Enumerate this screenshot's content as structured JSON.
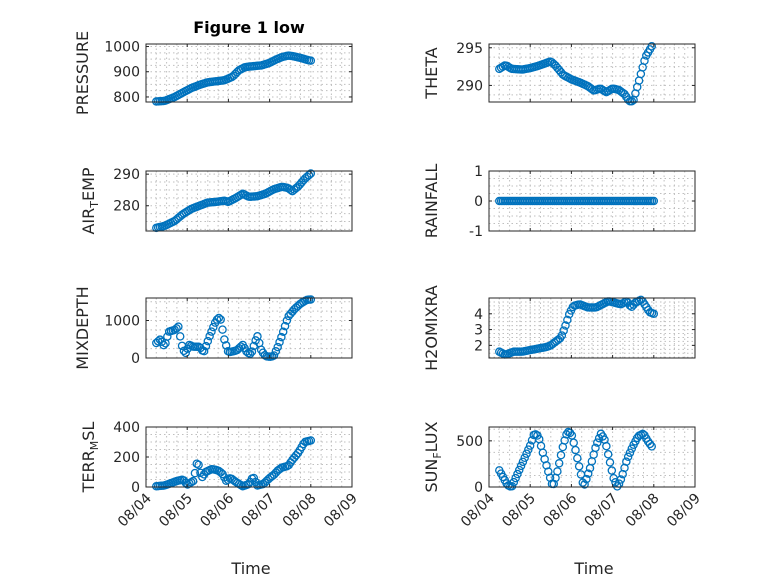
{
  "figure": {
    "title": "Figure 1 low",
    "xlabel": "Time",
    "colors": {
      "marker": "#0072BD",
      "axes": "#262626",
      "grid": "#bfbfbf",
      "background": "#ffffff"
    }
  },
  "chart_data": [
    {
      "id": "pressure",
      "type": "scatter",
      "title": "Figure 1 low",
      "ylabel": "PRESSURE",
      "xlim": [
        0,
        5
      ],
      "ylim": [
        780,
        1010
      ],
      "yticks": [
        800,
        900,
        1000
      ],
      "xticks": [
        0,
        1,
        2,
        3,
        4,
        5
      ],
      "xticklabels": [
        "08/04",
        "08/05",
        "08/06",
        "08/07",
        "08/08",
        "08/09"
      ],
      "show_xticklabels": false,
      "grid": true,
      "xlabel": "",
      "curve": [
        [
          0.25,
          782
        ],
        [
          0.45,
          784
        ],
        [
          0.7,
          800
        ],
        [
          0.9,
          818
        ],
        [
          1.1,
          835
        ],
        [
          1.3,
          848
        ],
        [
          1.5,
          858
        ],
        [
          1.7,
          862
        ],
        [
          1.9,
          866
        ],
        [
          2.1,
          880
        ],
        [
          2.25,
          905
        ],
        [
          2.4,
          918
        ],
        [
          2.6,
          922
        ],
        [
          2.8,
          925
        ],
        [
          3.0,
          935
        ],
        [
          3.15,
          948
        ],
        [
          3.3,
          958
        ],
        [
          3.45,
          964
        ],
        [
          3.55,
          962
        ],
        [
          3.75,
          955
        ],
        [
          3.85,
          950
        ],
        [
          3.95,
          945
        ],
        [
          4.0,
          944
        ]
      ],
      "n_points": 85
    },
    {
      "id": "theta",
      "type": "scatter",
      "ylabel": "THETA",
      "xlim": [
        0,
        5
      ],
      "ylim": [
        287.8,
        295.5
      ],
      "yticks": [
        290,
        295
      ],
      "xticks": [
        0,
        1,
        2,
        3,
        4,
        5
      ],
      "xticklabels": [
        "08/04",
        "08/05",
        "08/06",
        "08/07",
        "08/08",
        "08/09"
      ],
      "show_xticklabels": false,
      "grid": true,
      "xlabel": "",
      "curve": [
        [
          0.25,
          292.2
        ],
        [
          0.4,
          292.7
        ],
        [
          0.55,
          292.2
        ],
        [
          0.8,
          292.1
        ],
        [
          1.0,
          292.3
        ],
        [
          1.2,
          292.6
        ],
        [
          1.35,
          292.9
        ],
        [
          1.5,
          293.2
        ],
        [
          1.62,
          292.6
        ],
        [
          1.8,
          291.4
        ],
        [
          2.0,
          290.8
        ],
        [
          2.2,
          290.4
        ],
        [
          2.4,
          289.9
        ],
        [
          2.55,
          289.3
        ],
        [
          2.7,
          289.6
        ],
        [
          2.85,
          289.1
        ],
        [
          3.0,
          289.6
        ],
        [
          3.15,
          289.4
        ],
        [
          3.3,
          288.8
        ],
        [
          3.4,
          287.9
        ],
        [
          3.5,
          287.9
        ],
        [
          3.65,
          290.8
        ],
        [
          3.8,
          293.8
        ],
        [
          3.95,
          295.2
        ]
      ],
      "n_points": 85
    },
    {
      "id": "air_temp",
      "type": "scatter",
      "ylabel": "AIR_TEMP",
      "xlim": [
        0,
        5
      ],
      "ylim": [
        272,
        291
      ],
      "yticks": [
        280,
        290
      ],
      "xticks": [
        0,
        1,
        2,
        3,
        4,
        5
      ],
      "xticklabels": [
        "08/04",
        "08/05",
        "08/06",
        "08/07",
        "08/08",
        "08/09"
      ],
      "show_xticklabels": false,
      "grid": true,
      "xlabel": "",
      "curve": [
        [
          0.25,
          273
        ],
        [
          0.45,
          273.6
        ],
        [
          0.7,
          275.2
        ],
        [
          0.9,
          277.4
        ],
        [
          1.1,
          279
        ],
        [
          1.3,
          280
        ],
        [
          1.5,
          281
        ],
        [
          1.7,
          281.2
        ],
        [
          1.9,
          281.6
        ],
        [
          2.0,
          281.2
        ],
        [
          2.2,
          282.6
        ],
        [
          2.35,
          283.8
        ],
        [
          2.5,
          282.8
        ],
        [
          2.7,
          283
        ],
        [
          2.9,
          283.8
        ],
        [
          3.1,
          285.2
        ],
        [
          3.3,
          286
        ],
        [
          3.45,
          285.6
        ],
        [
          3.55,
          284.6
        ],
        [
          3.7,
          286.2
        ],
        [
          3.85,
          288.5
        ],
        [
          4.0,
          290.2
        ]
      ],
      "n_points": 85
    },
    {
      "id": "rainfall",
      "type": "scatter",
      "ylabel": "RAINFALL",
      "xlim": [
        0,
        5
      ],
      "ylim": [
        -1,
        1
      ],
      "yticks": [
        -1,
        0,
        1
      ],
      "xticks": [
        0,
        1,
        2,
        3,
        4,
        5
      ],
      "xticklabels": [
        "08/04",
        "08/05",
        "08/06",
        "08/07",
        "08/08",
        "08/09"
      ],
      "show_xticklabels": false,
      "grid": true,
      "xlabel": "",
      "curve": [
        [
          0.25,
          0
        ],
        [
          4.0,
          0
        ]
      ],
      "n_points": 85
    },
    {
      "id": "mixdepth",
      "type": "scatter",
      "ylabel": "MIXDEPTH",
      "xlim": [
        0,
        5
      ],
      "ylim": [
        0,
        1600
      ],
      "yticks": [
        0,
        1000
      ],
      "xticks": [
        0,
        1,
        2,
        3,
        4,
        5
      ],
      "xticklabels": [
        "08/04",
        "08/05",
        "08/06",
        "08/07",
        "08/08",
        "08/09"
      ],
      "show_xticklabels": false,
      "grid": true,
      "xlabel": "",
      "curve": [
        [
          0.25,
          400
        ],
        [
          0.35,
          500
        ],
        [
          0.45,
          300
        ],
        [
          0.55,
          700
        ],
        [
          0.7,
          750
        ],
        [
          0.8,
          850
        ],
        [
          0.85,
          400
        ],
        [
          0.95,
          100
        ],
        [
          1.05,
          350
        ],
        [
          1.15,
          300
        ],
        [
          1.3,
          300
        ],
        [
          1.4,
          150
        ],
        [
          1.55,
          600
        ],
        [
          1.7,
          1000
        ],
        [
          1.8,
          1100
        ],
        [
          1.9,
          500
        ],
        [
          2.0,
          150
        ],
        [
          2.2,
          200
        ],
        [
          2.35,
          350
        ],
        [
          2.45,
          150
        ],
        [
          2.55,
          100
        ],
        [
          2.7,
          600
        ],
        [
          2.8,
          200
        ],
        [
          2.9,
          50
        ],
        [
          3.0,
          30
        ],
        [
          3.1,
          50
        ],
        [
          3.2,
          300
        ],
        [
          3.3,
          600
        ],
        [
          3.45,
          1100
        ],
        [
          3.6,
          1300
        ],
        [
          3.75,
          1450
        ],
        [
          3.9,
          1550
        ],
        [
          4.0,
          1560
        ]
      ],
      "n_points": 85
    },
    {
      "id": "h2omixra",
      "type": "scatter",
      "ylabel": "H2OMIXRA",
      "xlim": [
        0,
        5
      ],
      "ylim": [
        1.2,
        5.0
      ],
      "yticks": [
        2,
        3,
        4
      ],
      "xticks": [
        0,
        1,
        2,
        3,
        4,
        5
      ],
      "xticklabels": [
        "08/04",
        "08/05",
        "08/06",
        "08/07",
        "08/08",
        "08/09"
      ],
      "show_xticklabels": false,
      "grid": true,
      "xlabel": "",
      "curve": [
        [
          0.25,
          1.6
        ],
        [
          0.4,
          1.4
        ],
        [
          0.6,
          1.6
        ],
        [
          0.8,
          1.6
        ],
        [
          1.0,
          1.7
        ],
        [
          1.2,
          1.8
        ],
        [
          1.4,
          1.9
        ],
        [
          1.5,
          2.0
        ],
        [
          1.6,
          2.2
        ],
        [
          1.75,
          2.5
        ],
        [
          1.85,
          3.2
        ],
        [
          1.95,
          4.0
        ],
        [
          2.05,
          4.5
        ],
        [
          2.2,
          4.6
        ],
        [
          2.4,
          4.4
        ],
        [
          2.6,
          4.4
        ],
        [
          2.75,
          4.6
        ],
        [
          2.9,
          4.8
        ],
        [
          3.05,
          4.7
        ],
        [
          3.2,
          4.6
        ],
        [
          3.35,
          4.8
        ],
        [
          3.45,
          4.4
        ],
        [
          3.55,
          4.7
        ],
        [
          3.7,
          4.9
        ],
        [
          3.8,
          4.5
        ],
        [
          3.9,
          4.1
        ],
        [
          4.0,
          4.0
        ]
      ],
      "n_points": 85
    },
    {
      "id": "terr_msl",
      "type": "scatter",
      "ylabel": "TERR_MSL",
      "xlim": [
        0,
        5
      ],
      "ylim": [
        0,
        400
      ],
      "yticks": [
        0,
        200,
        400
      ],
      "xticks": [
        0,
        1,
        2,
        3,
        4,
        5
      ],
      "xticklabels": [
        "08/04",
        "08/05",
        "08/06",
        "08/07",
        "08/08",
        "08/09"
      ],
      "show_xticklabels": true,
      "grid": true,
      "xlabel": "Time",
      "curve": [
        [
          0.25,
          5
        ],
        [
          0.45,
          10
        ],
        [
          0.6,
          25
        ],
        [
          0.75,
          40
        ],
        [
          0.9,
          50
        ],
        [
          1.0,
          15
        ],
        [
          1.15,
          40
        ],
        [
          1.25,
          180
        ],
        [
          1.35,
          60
        ],
        [
          1.45,
          100
        ],
        [
          1.6,
          120
        ],
        [
          1.75,
          110
        ],
        [
          1.85,
          90
        ],
        [
          1.95,
          40
        ],
        [
          2.05,
          60
        ],
        [
          2.2,
          30
        ],
        [
          2.35,
          5
        ],
        [
          2.5,
          20
        ],
        [
          2.6,
          70
        ],
        [
          2.7,
          10
        ],
        [
          2.85,
          20
        ],
        [
          3.0,
          60
        ],
        [
          3.1,
          80
        ],
        [
          3.2,
          110
        ],
        [
          3.3,
          130
        ],
        [
          3.45,
          140
        ],
        [
          3.55,
          180
        ],
        [
          3.7,
          230
        ],
        [
          3.85,
          300
        ],
        [
          4.0,
          310
        ]
      ],
      "n_points": 85
    },
    {
      "id": "sun_flux",
      "type": "scatter",
      "ylabel": "SUN_FLUX",
      "xlim": [
        0,
        5
      ],
      "ylim": [
        0,
        650
      ],
      "yticks": [
        0,
        500
      ],
      "xticks": [
        0,
        1,
        2,
        3,
        4,
        5
      ],
      "xticklabels": [
        "08/04",
        "08/05",
        "08/06",
        "08/07",
        "08/08",
        "08/09"
      ],
      "show_xticklabels": true,
      "grid": true,
      "xlabel": "Time",
      "curve": [
        [
          0.25,
          180
        ],
        [
          0.35,
          100
        ],
        [
          0.45,
          20
        ],
        [
          0.55,
          0
        ],
        [
          0.7,
          150
        ],
        [
          0.85,
          300
        ],
        [
          1.0,
          450
        ],
        [
          1.1,
          580
        ],
        [
          1.2,
          550
        ],
        [
          1.32,
          350
        ],
        [
          1.45,
          150
        ],
        [
          1.55,
          0
        ],
        [
          1.65,
          150
        ],
        [
          1.8,
          450
        ],
        [
          1.9,
          600
        ],
        [
          2.0,
          580
        ],
        [
          2.1,
          400
        ],
        [
          2.2,
          200
        ],
        [
          2.3,
          0
        ],
        [
          2.45,
          200
        ],
        [
          2.6,
          450
        ],
        [
          2.72,
          580
        ],
        [
          2.82,
          500
        ],
        [
          2.92,
          300
        ],
        [
          3.02,
          100
        ],
        [
          3.12,
          0
        ],
        [
          3.22,
          100
        ],
        [
          3.35,
          300
        ],
        [
          3.5,
          450
        ],
        [
          3.62,
          550
        ],
        [
          3.75,
          580
        ],
        [
          3.85,
          500
        ],
        [
          3.95,
          440
        ]
      ],
      "n_points": 85
    }
  ]
}
